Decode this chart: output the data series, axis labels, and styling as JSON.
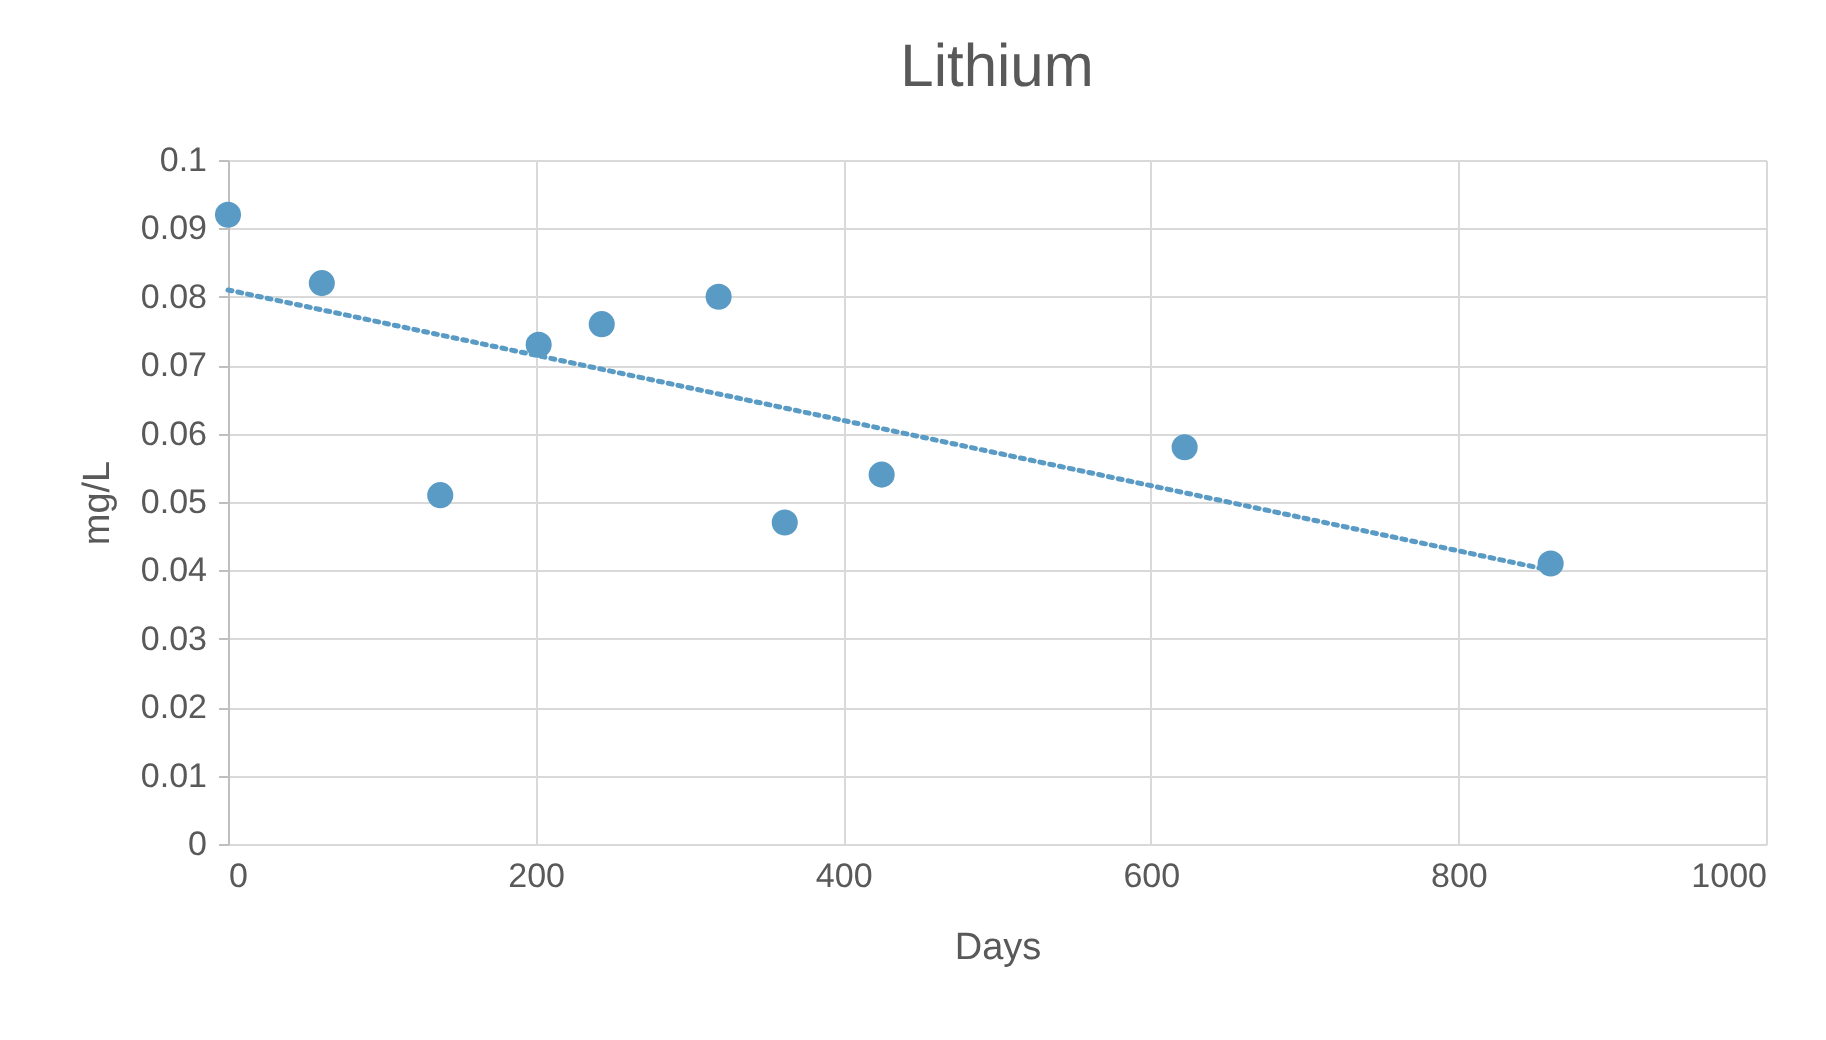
{
  "chart_data": {
    "type": "scatter",
    "title": "Lithium",
    "xlabel": "Days",
    "ylabel": "mg/L",
    "xlim": [
      0,
      1000
    ],
    "xticks": [
      0,
      200,
      400,
      600,
      800,
      1000
    ],
    "ylim": [
      0,
      0.1
    ],
    "yticks": [
      0,
      0.01,
      0.02,
      0.03,
      0.04,
      0.05,
      0.06,
      0.07,
      0.08,
      0.09,
      0.1
    ],
    "grid": true,
    "series": [
      {
        "color": "#5a9bc5",
        "marker": "circle",
        "x": [
          0,
          61,
          138,
          202,
          243,
          319,
          362,
          425,
          622,
          860
        ],
        "values": [
          0.092,
          0.082,
          0.051,
          0.073,
          0.076,
          0.08,
          0.047,
          0.054,
          0.058,
          0.041
        ]
      },
      {
        "type": "line",
        "color": "#5a9bc5",
        "marker": "none",
        "line_style": "dotted",
        "x": [
          0,
          860
        ],
        "values": [
          0.081,
          0.04
        ]
      }
    ]
  }
}
